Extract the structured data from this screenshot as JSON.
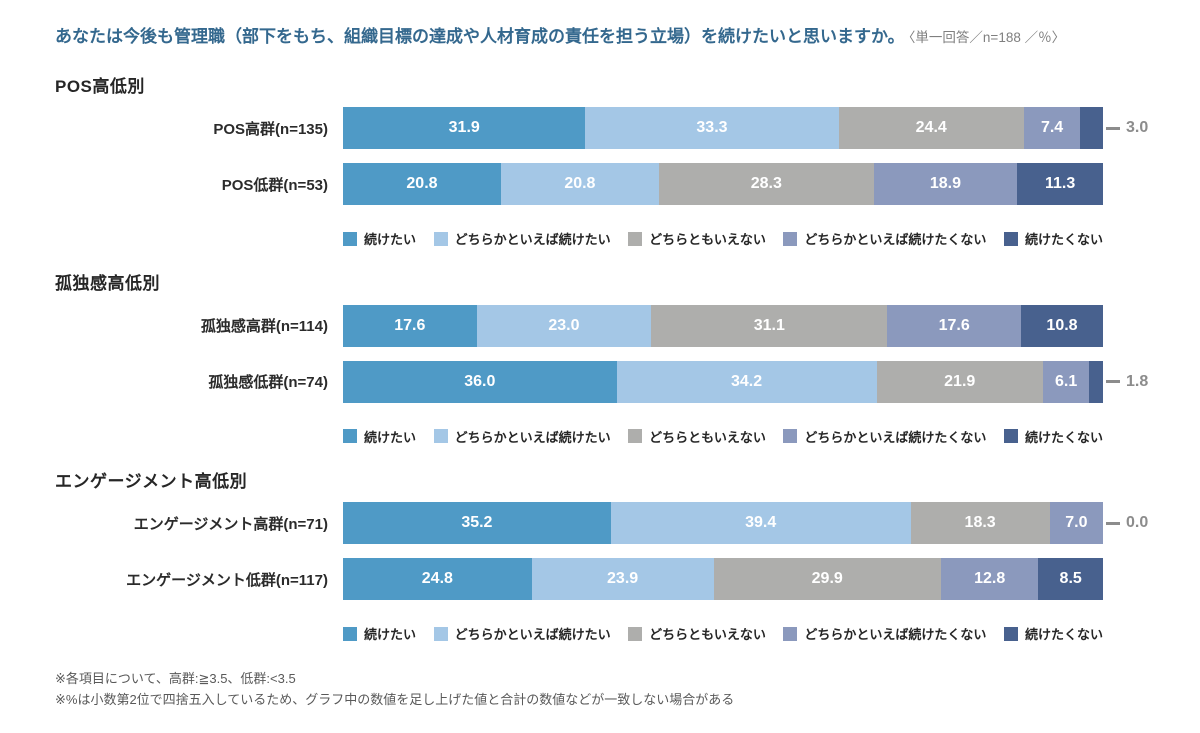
{
  "page": {
    "title": "あなたは今後も管理職（部下をもち、組織目標の達成や人材育成の責任を担う立場）を続けたいと思いますか。",
    "note": "〈単一回答／n=188 ／％〉",
    "footnotes": [
      "※各項目について、高群:≧3.5、低群:<3.5",
      "※%は小数第2位で四捨五入しているため、グラフ中の数値を足し上げた値と合計の数値などが一致しない場合がある"
    ]
  },
  "colors": {
    "title_text": "#34688e",
    "note_text": "#7f7f7f",
    "heading_text": "#262626",
    "row_label_text": "#2b2b2b",
    "bar_value_text": "#ffffff",
    "callout_text": "#8c8c8c",
    "footnote_text": "#595959",
    "series": [
      "#4f9ac6",
      "#a4c7e6",
      "#aeaeac",
      "#8b99bd",
      "#48618e"
    ]
  },
  "chart_data": {
    "type": "bar",
    "stacked": true,
    "orientation": "horizontal",
    "unit": "%",
    "xlim": [
      0,
      100
    ],
    "title": "あなたは今後も管理職（部下をもち、組織目標の達成や人材育成の責任を担う立場）を続けたいと思いますか。",
    "note": "〈単一回答／n=188 ／％〉",
    "legend": [
      "続けたい",
      "どちらかといえば続けたい",
      "どちらともいえない",
      "どちらかといえば続けたくない",
      "続けたくない"
    ],
    "layout_hints": {
      "legend_position": "below-each-group",
      "grid": false,
      "min_inside_label_pct": 5,
      "value_decimals": 1
    },
    "groups": [
      {
        "group_title": "POS高低別",
        "categories": [
          "POS高群(n=135)",
          "POS低群(n=53)"
        ],
        "callouts": [
          "3.0",
          null
        ],
        "series": [
          {
            "name": "続けたい",
            "values": [
              31.9,
              20.8
            ]
          },
          {
            "name": "どちらかといえば続けたい",
            "values": [
              33.3,
              20.8
            ]
          },
          {
            "name": "どちらともいえない",
            "values": [
              24.4,
              28.3
            ]
          },
          {
            "name": "どちらかといえば続けたくない",
            "values": [
              7.4,
              18.9
            ]
          },
          {
            "name": "続けたくない",
            "values": [
              3.0,
              11.3
            ]
          }
        ]
      },
      {
        "group_title": "孤独感高低別",
        "categories": [
          "孤独感高群(n=114)",
          "孤独感低群(n=74)"
        ],
        "callouts": [
          null,
          "1.8"
        ],
        "series": [
          {
            "name": "続けたい",
            "values": [
              17.6,
              36.0
            ]
          },
          {
            "name": "どちらかといえば続けたい",
            "values": [
              23.0,
              34.2
            ]
          },
          {
            "name": "どちらともいえない",
            "values": [
              31.1,
              21.9
            ]
          },
          {
            "name": "どちらかといえば続けたくない",
            "values": [
              17.6,
              6.1
            ]
          },
          {
            "name": "続けたくない",
            "values": [
              10.8,
              1.8
            ]
          }
        ]
      },
      {
        "group_title": "エンゲージメント高低別",
        "categories": [
          "エンゲージメント高群(n=71)",
          "エンゲージメント低群(n=117)"
        ],
        "callouts": [
          "0.0",
          null
        ],
        "series": [
          {
            "name": "続けたい",
            "values": [
              35.2,
              24.8
            ]
          },
          {
            "name": "どちらかといえば続けたい",
            "values": [
              39.4,
              23.9
            ]
          },
          {
            "name": "どちらともいえない",
            "values": [
              18.3,
              29.9
            ]
          },
          {
            "name": "どちらかといえば続けたくない",
            "values": [
              7.0,
              12.8
            ]
          },
          {
            "name": "続けたくない",
            "values": [
              0.0,
              8.5
            ]
          }
        ]
      }
    ]
  }
}
